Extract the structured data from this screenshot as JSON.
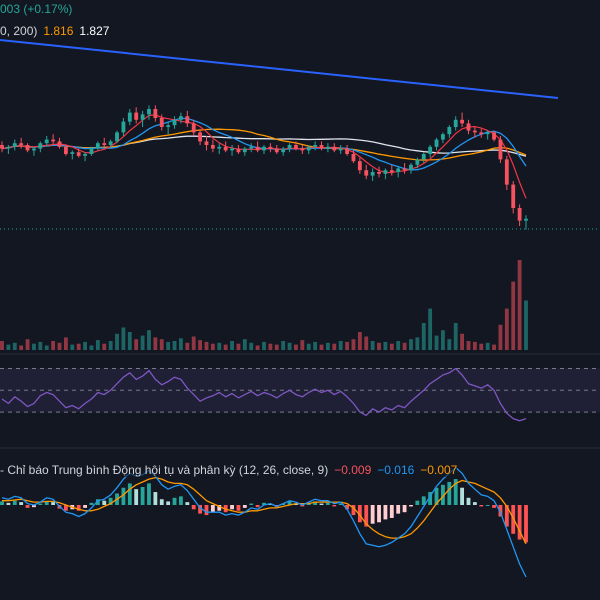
{
  "legend": {
    "top_line_text": "003 (+0.17%)",
    "ma_params": "0, 200)",
    "ma_value_1": "1.816",
    "ma_value_2": "1.827",
    "macd_title": "- Chỉ báo Trung bình Động hội tụ và phân kỳ (12, 26, close, 9)",
    "macd_hist": "−0.009",
    "macd_line": "−0.016",
    "macd_signal": "−0.007"
  },
  "colors": {
    "background": "#131722",
    "up": "#26a69a",
    "down": "#f7525f",
    "trendline": "#2962ff",
    "ma_fast": "#f23645",
    "ma_mid": "#2196f3",
    "ma_slow": "#ff9800",
    "ma_long": "#e0e3eb",
    "rsi": "#7e57c2",
    "macd": "#2196f3",
    "signal": "#ff9800"
  },
  "chart_data": [
    {
      "type": "candlestick",
      "panel": "price",
      "title": "",
      "description": "Price candles, long downtrend line touching highs, four moving averages; sharp selloff at the right end.",
      "candles_ohlc_normalized": [
        [
          0.5,
          0.52,
          0.46,
          0.48
        ],
        [
          0.48,
          0.5,
          0.45,
          0.49
        ],
        [
          0.49,
          0.53,
          0.47,
          0.51
        ],
        [
          0.51,
          0.54,
          0.48,
          0.5
        ],
        [
          0.5,
          0.51,
          0.46,
          0.47
        ],
        [
          0.47,
          0.49,
          0.44,
          0.48
        ],
        [
          0.48,
          0.52,
          0.46,
          0.51
        ],
        [
          0.51,
          0.55,
          0.49,
          0.53
        ],
        [
          0.53,
          0.56,
          0.5,
          0.52
        ],
        [
          0.52,
          0.54,
          0.48,
          0.49
        ],
        [
          0.49,
          0.5,
          0.44,
          0.45
        ],
        [
          0.45,
          0.47,
          0.42,
          0.46
        ],
        [
          0.46,
          0.48,
          0.43,
          0.44
        ],
        [
          0.44,
          0.46,
          0.41,
          0.45
        ],
        [
          0.45,
          0.49,
          0.44,
          0.48
        ],
        [
          0.48,
          0.52,
          0.47,
          0.51
        ],
        [
          0.51,
          0.54,
          0.49,
          0.5
        ],
        [
          0.5,
          0.53,
          0.48,
          0.52
        ],
        [
          0.52,
          0.58,
          0.51,
          0.57
        ],
        [
          0.57,
          0.65,
          0.55,
          0.63
        ],
        [
          0.63,
          0.7,
          0.61,
          0.68
        ],
        [
          0.68,
          0.71,
          0.62,
          0.64
        ],
        [
          0.64,
          0.69,
          0.6,
          0.67
        ],
        [
          0.67,
          0.72,
          0.64,
          0.7
        ],
        [
          0.7,
          0.72,
          0.63,
          0.65
        ],
        [
          0.65,
          0.67,
          0.58,
          0.6
        ],
        [
          0.6,
          0.63,
          0.56,
          0.61
        ],
        [
          0.61,
          0.66,
          0.59,
          0.64
        ],
        [
          0.64,
          0.68,
          0.62,
          0.66
        ],
        [
          0.66,
          0.69,
          0.6,
          0.62
        ],
        [
          0.62,
          0.64,
          0.55,
          0.57
        ],
        [
          0.57,
          0.59,
          0.5,
          0.52
        ],
        [
          0.52,
          0.55,
          0.47,
          0.5
        ],
        [
          0.5,
          0.53,
          0.46,
          0.48
        ],
        [
          0.48,
          0.51,
          0.45,
          0.49
        ],
        [
          0.49,
          0.52,
          0.46,
          0.47
        ],
        [
          0.47,
          0.5,
          0.44,
          0.48
        ],
        [
          0.48,
          0.5,
          0.45,
          0.46
        ],
        [
          0.46,
          0.49,
          0.44,
          0.48
        ],
        [
          0.48,
          0.51,
          0.46,
          0.49
        ],
        [
          0.49,
          0.52,
          0.46,
          0.47
        ],
        [
          0.47,
          0.5,
          0.45,
          0.49
        ],
        [
          0.49,
          0.51,
          0.46,
          0.48
        ],
        [
          0.48,
          0.5,
          0.45,
          0.46
        ],
        [
          0.46,
          0.49,
          0.44,
          0.48
        ],
        [
          0.48,
          0.51,
          0.46,
          0.5
        ],
        [
          0.5,
          0.52,
          0.47,
          0.48
        ],
        [
          0.48,
          0.5,
          0.45,
          0.47
        ],
        [
          0.47,
          0.5,
          0.45,
          0.49
        ],
        [
          0.49,
          0.52,
          0.47,
          0.5
        ],
        [
          0.5,
          0.52,
          0.47,
          0.48
        ],
        [
          0.48,
          0.51,
          0.46,
          0.49
        ],
        [
          0.49,
          0.51,
          0.46,
          0.47
        ],
        [
          0.47,
          0.5,
          0.45,
          0.48
        ],
        [
          0.48,
          0.5,
          0.44,
          0.45
        ],
        [
          0.45,
          0.47,
          0.4,
          0.41
        ],
        [
          0.41,
          0.43,
          0.34,
          0.36
        ],
        [
          0.36,
          0.39,
          0.31,
          0.33
        ],
        [
          0.33,
          0.37,
          0.3,
          0.35
        ],
        [
          0.35,
          0.38,
          0.32,
          0.34
        ],
        [
          0.34,
          0.37,
          0.31,
          0.36
        ],
        [
          0.36,
          0.39,
          0.33,
          0.35
        ],
        [
          0.35,
          0.38,
          0.32,
          0.37
        ],
        [
          0.37,
          0.4,
          0.34,
          0.36
        ],
        [
          0.36,
          0.4,
          0.34,
          0.39
        ],
        [
          0.39,
          0.43,
          0.37,
          0.42
        ],
        [
          0.42,
          0.46,
          0.4,
          0.45
        ],
        [
          0.45,
          0.5,
          0.43,
          0.49
        ],
        [
          0.49,
          0.54,
          0.47,
          0.53
        ],
        [
          0.53,
          0.57,
          0.51,
          0.56
        ],
        [
          0.56,
          0.61,
          0.54,
          0.6
        ],
        [
          0.6,
          0.66,
          0.58,
          0.64
        ],
        [
          0.64,
          0.68,
          0.6,
          0.62
        ],
        [
          0.62,
          0.64,
          0.56,
          0.58
        ],
        [
          0.58,
          0.6,
          0.54,
          0.57
        ],
        [
          0.57,
          0.59,
          0.54,
          0.56
        ],
        [
          0.56,
          0.58,
          0.53,
          0.57
        ],
        [
          0.57,
          0.58,
          0.52,
          0.53
        ],
        [
          0.53,
          0.55,
          0.4,
          0.42
        ],
        [
          0.42,
          0.44,
          0.25,
          0.28
        ],
        [
          0.28,
          0.3,
          0.12,
          0.15
        ],
        [
          0.15,
          0.17,
          0.05,
          0.08
        ],
        [
          0.08,
          0.11,
          0.03,
          0.09
        ]
      ]
    },
    {
      "type": "bar",
      "panel": "volume",
      "title": "",
      "values_normalized": [
        0.1,
        0.06,
        0.08,
        0.05,
        0.12,
        0.07,
        0.09,
        0.05,
        0.1,
        0.08,
        0.14,
        0.06,
        0.07,
        0.09,
        0.05,
        0.11,
        0.07,
        0.1,
        0.18,
        0.25,
        0.2,
        0.12,
        0.16,
        0.22,
        0.14,
        0.12,
        0.09,
        0.1,
        0.13,
        0.08,
        0.15,
        0.11,
        0.09,
        0.07,
        0.08,
        0.06,
        0.1,
        0.07,
        0.12,
        0.08,
        0.05,
        0.09,
        0.07,
        0.06,
        0.1,
        0.08,
        0.06,
        0.11,
        0.07,
        0.09,
        0.06,
        0.08,
        0.07,
        0.1,
        0.09,
        0.12,
        0.2,
        0.15,
        0.1,
        0.08,
        0.09,
        0.07,
        0.1,
        0.08,
        0.12,
        0.14,
        0.3,
        0.46,
        0.16,
        0.22,
        0.12,
        0.3,
        0.18,
        0.1,
        0.09,
        0.07,
        0.08,
        0.06,
        0.28,
        0.46,
        0.76,
        1.0,
        0.55
      ]
    },
    {
      "type": "line",
      "panel": "rsi",
      "title": "",
      "levels": [
        70,
        50,
        30
      ],
      "values": [
        42,
        38,
        44,
        40,
        35,
        38,
        45,
        48,
        46,
        40,
        34,
        36,
        33,
        38,
        42,
        48,
        46,
        50,
        56,
        62,
        66,
        60,
        63,
        68,
        60,
        55,
        58,
        62,
        60,
        52,
        46,
        40,
        43,
        45,
        48,
        44,
        47,
        43,
        46,
        49,
        45,
        48,
        46,
        43,
        47,
        50,
        46,
        44,
        48,
        51,
        48,
        50,
        46,
        49,
        44,
        38,
        30,
        27,
        33,
        30,
        34,
        32,
        36,
        34,
        40,
        45,
        50,
        56,
        60,
        64,
        66,
        70,
        64,
        56,
        54,
        52,
        55,
        50,
        38,
        29,
        24,
        22,
        24
      ]
    },
    {
      "type": "bar",
      "panel": "macd",
      "title": "",
      "hist_normalized": [
        0.05,
        0.03,
        0.06,
        0.04,
        -0.04,
        -0.03,
        0.02,
        0.05,
        0.04,
        -0.05,
        -0.08,
        -0.06,
        -0.08,
        -0.04,
        0.03,
        0.08,
        0.06,
        0.1,
        0.16,
        0.24,
        0.3,
        0.22,
        0.25,
        0.3,
        0.18,
        0.08,
        0.05,
        0.1,
        0.12,
        0.04,
        -0.06,
        -0.12,
        -0.14,
        -0.1,
        -0.08,
        -0.1,
        -0.06,
        -0.08,
        -0.04,
        0.02,
        -0.03,
        0.03,
        0.02,
        -0.03,
        0.02,
        0.05,
        0.02,
        -0.02,
        0.03,
        0.05,
        0.02,
        0.03,
        -0.02,
        0.02,
        -0.06,
        -0.14,
        -0.24,
        -0.3,
        -0.26,
        -0.24,
        -0.2,
        -0.18,
        -0.12,
        -0.1,
        -0.02,
        0.06,
        0.12,
        0.18,
        0.24,
        0.28,
        0.32,
        0.36,
        0.24,
        0.1,
        0.04,
        -0.02,
        0.0,
        -0.04,
        -0.16,
        -0.3,
        -0.4,
        -0.48,
        -0.52
      ],
      "macd_normalized": [
        0.1,
        0.08,
        0.12,
        0.1,
        0.02,
        0.0,
        0.04,
        0.1,
        0.08,
        -0.02,
        -0.1,
        -0.12,
        -0.16,
        -0.12,
        -0.04,
        0.06,
        0.08,
        0.14,
        0.24,
        0.36,
        0.44,
        0.4,
        0.42,
        0.48,
        0.4,
        0.28,
        0.22,
        0.26,
        0.28,
        0.2,
        0.08,
        -0.04,
        -0.1,
        -0.1,
        -0.1,
        -0.14,
        -0.12,
        -0.14,
        -0.1,
        -0.04,
        -0.06,
        0.0,
        0.02,
        -0.02,
        0.02,
        0.06,
        0.04,
        0.0,
        0.04,
        0.08,
        0.06,
        0.06,
        0.02,
        0.04,
        -0.06,
        -0.22,
        -0.4,
        -0.54,
        -0.56,
        -0.58,
        -0.56,
        -0.52,
        -0.46,
        -0.4,
        -0.3,
        -0.16,
        -0.02,
        0.12,
        0.26,
        0.36,
        0.44,
        0.52,
        0.44,
        0.3,
        0.22,
        0.14,
        0.12,
        0.06,
        -0.1,
        -0.34,
        -0.58,
        -0.82,
        -1.0
      ],
      "signal_normalized": [
        0.06,
        0.06,
        0.07,
        0.08,
        0.06,
        0.04,
        0.04,
        0.05,
        0.05,
        0.03,
        0.0,
        -0.03,
        -0.06,
        -0.08,
        -0.08,
        -0.06,
        -0.02,
        0.02,
        0.08,
        0.14,
        0.22,
        0.28,
        0.32,
        0.36,
        0.38,
        0.36,
        0.32,
        0.3,
        0.3,
        0.28,
        0.22,
        0.14,
        0.06,
        0.02,
        -0.02,
        -0.06,
        -0.08,
        -0.1,
        -0.1,
        -0.08,
        -0.08,
        -0.06,
        -0.04,
        -0.04,
        -0.02,
        0.0,
        0.02,
        0.02,
        0.02,
        0.04,
        0.04,
        0.04,
        0.04,
        0.04,
        0.02,
        -0.04,
        -0.14,
        -0.26,
        -0.34,
        -0.4,
        -0.44,
        -0.46,
        -0.46,
        -0.44,
        -0.4,
        -0.32,
        -0.22,
        -0.1,
        0.02,
        0.12,
        0.22,
        0.3,
        0.34,
        0.32,
        0.3,
        0.26,
        0.22,
        0.18,
        0.1,
        -0.02,
        -0.18,
        -0.36,
        -0.54
      ]
    }
  ]
}
